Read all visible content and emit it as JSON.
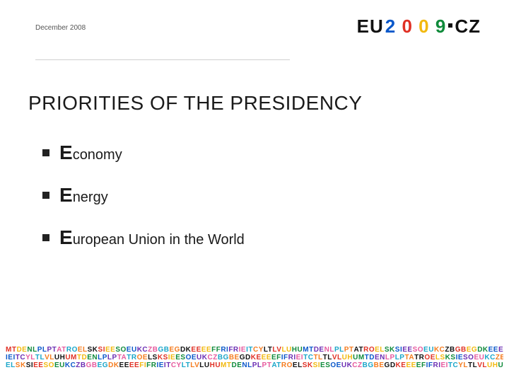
{
  "header": {
    "date": "December 2008",
    "logo": {
      "eu_text": "EU",
      "year_digits": [
        {
          "char": "2",
          "color": "#0a58ca"
        },
        {
          "char": "0",
          "color": "#e03024"
        },
        {
          "char": "0",
          "color": "#f2b90f"
        },
        {
          "char": "9",
          "color": "#0f8a3a"
        }
      ],
      "cz_text": "CZ"
    }
  },
  "title": "PRIORITIES OF THE PRESIDENCY",
  "bullets": [
    {
      "big": "E",
      "rest": "conomy"
    },
    {
      "big": "E",
      "rest": "nergy"
    },
    {
      "big": "E",
      "rest": "uropean Union in the World"
    }
  ],
  "footer": {
    "palette": [
      "#e03024",
      "#f2b90f",
      "#0f8a3a",
      "#0a58ca",
      "#6b2fb3",
      "#e65a9e",
      "#1aa6c9",
      "#f57c1f",
      "#111111"
    ],
    "line1": "MTDENLPLPTATROELSKSIEESOEUKCZBGBEGDKEEEEFFRIFRIEITCYLTLVLUHUMTDENLPLPTATROELSKSIEESOEUKCZBGBEGDKEEEEFFRIFRIEITCYLTLVLUHU",
    "line2": "IEITCYLTLVLUHUMTDENLPLPTATROELSKSIEESOEUKCZBGBEGDKEEEEFIFRIEITCTLTLVLUHUMTDENLPLPTATROELSKSIESOEUKCZBGBEGDKEEEEFIF",
    "line3": "ELSKSIEESOEUKCZBGBEGDKEEEEFIFRIEITCYLTLVLUHUMTDENLPLPTATROELSKSIESOEUKCZBGBEGDKEEEEFIFRIEITCYLTLVLUHUMTDENLPLPTATRO"
  }
}
